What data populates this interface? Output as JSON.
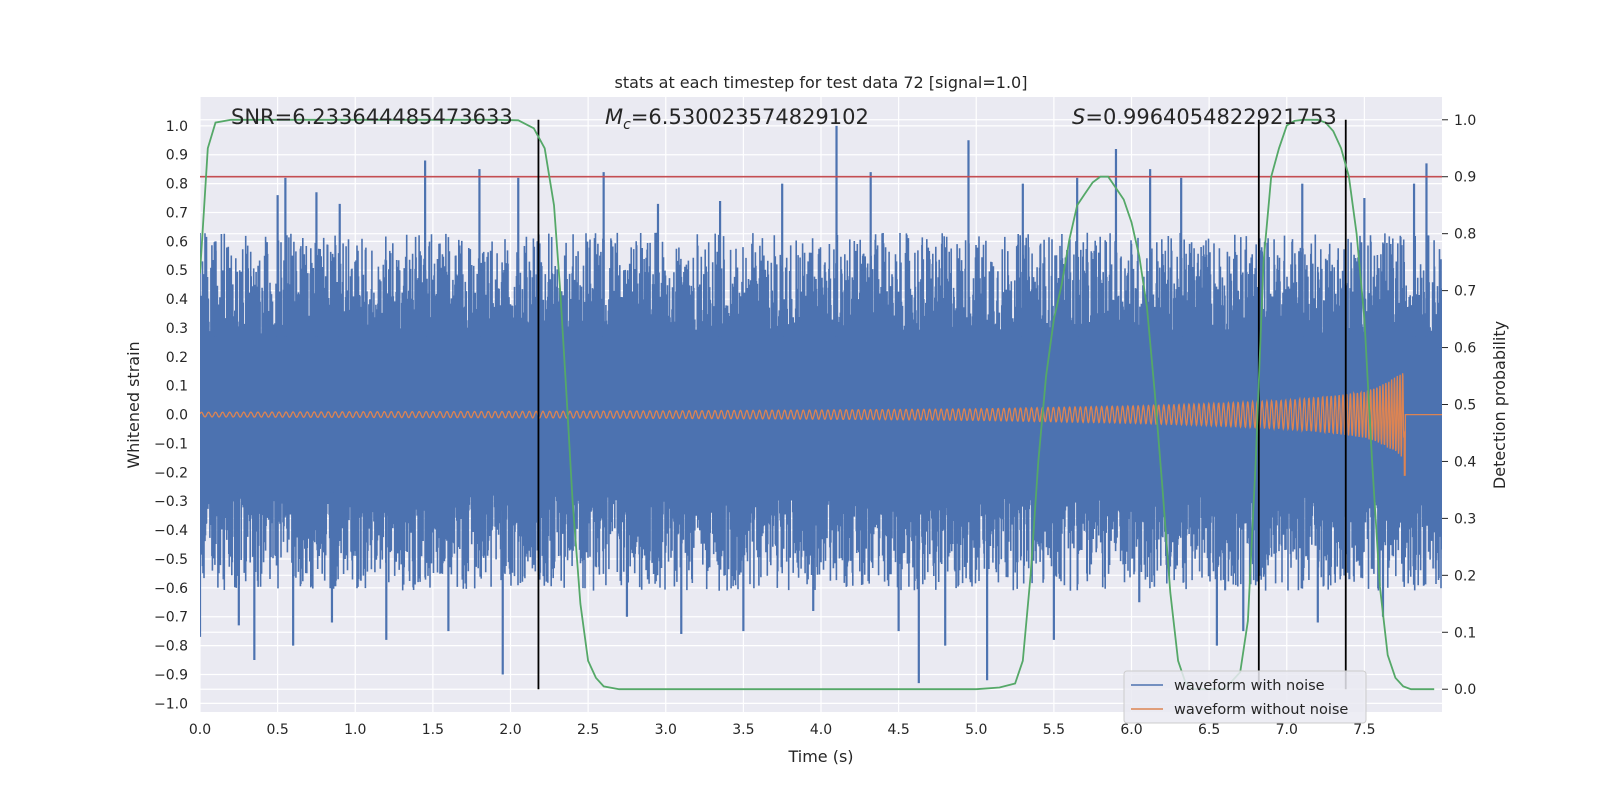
{
  "chart_data": {
    "type": "line",
    "title": "stats at each timestep for test data 72 [signal=1.0]",
    "xlabel": "Time (s)",
    "ylabel": "Whitened strain",
    "y2label": "Detection probability",
    "xlim": [
      0.0,
      8.0
    ],
    "ylim": [
      -1.03,
      1.1
    ],
    "y2lim": [
      -0.04,
      1.04
    ],
    "x_ticks": [
      "0.0",
      "0.5",
      "1.0",
      "1.5",
      "2.0",
      "2.5",
      "3.0",
      "3.5",
      "4.0",
      "4.5",
      "5.0",
      "5.5",
      "6.0",
      "6.5",
      "7.0",
      "7.5"
    ],
    "y_ticks": [
      "1.0",
      "0.9",
      "0.8",
      "0.7",
      "0.6",
      "0.5",
      "0.4",
      "0.3",
      "0.2",
      "0.1",
      "0.0",
      "−0.1",
      "−0.2",
      "−0.3",
      "−0.4",
      "−0.5",
      "−0.6",
      "−0.7",
      "−0.8",
      "−0.9",
      "−1.0"
    ],
    "y2_ticks": [
      "1.0",
      "0.9",
      "0.8",
      "0.7",
      "0.6",
      "0.5",
      "0.4",
      "0.3",
      "0.2",
      "0.1",
      "0.0"
    ],
    "annotations": {
      "snr": "SNR=6.233644485473633",
      "mc": "=6.530023574829102",
      "mc_symbol": "M",
      "mc_sub": "c",
      "s": "=0.9964054822921753",
      "s_symbol": "S"
    },
    "legend": {
      "placement": "lower-right",
      "entries": [
        {
          "label": "waveform with noise",
          "color": "#4c72b0"
        },
        {
          "label": "waveform without noise",
          "color": "#dd8452"
        }
      ]
    },
    "threshold": {
      "y2": 0.9,
      "color": "#c44e52"
    },
    "vertical_markers": [
      2.18,
      6.82,
      7.38
    ],
    "detection_probability": {
      "color": "#55a868",
      "x": [
        0.0,
        0.05,
        0.1,
        0.2,
        0.4,
        1.0,
        1.5,
        1.9,
        2.05,
        2.15,
        2.22,
        2.28,
        2.32,
        2.36,
        2.4,
        2.45,
        2.5,
        2.55,
        2.6,
        2.7,
        2.8,
        3.0,
        4.0,
        5.0,
        5.15,
        5.25,
        5.3,
        5.35,
        5.4,
        5.45,
        5.5,
        5.55,
        5.6,
        5.65,
        5.7,
        5.75,
        5.8,
        5.85,
        5.9,
        5.95,
        6.0,
        6.05,
        6.1,
        6.15,
        6.2,
        6.25,
        6.3,
        6.35,
        6.4,
        6.45,
        6.5,
        6.6,
        6.7,
        6.75,
        6.8,
        6.85,
        6.9,
        6.95,
        7.0,
        7.05,
        7.1,
        7.15,
        7.2,
        7.25,
        7.3,
        7.35,
        7.4,
        7.45,
        7.5,
        7.55,
        7.6,
        7.65,
        7.7,
        7.75,
        7.8,
        7.9,
        7.95
      ],
      "y": [
        0.73,
        0.95,
        0.995,
        1.0,
        1.0,
        1.0,
        1.0,
        1.0,
        0.999,
        0.985,
        0.95,
        0.85,
        0.7,
        0.52,
        0.33,
        0.15,
        0.05,
        0.02,
        0.005,
        0.0,
        0.0,
        0.0,
        0.0,
        0.0,
        0.003,
        0.01,
        0.05,
        0.2,
        0.4,
        0.55,
        0.65,
        0.71,
        0.79,
        0.85,
        0.87,
        0.89,
        0.9,
        0.9,
        0.88,
        0.86,
        0.82,
        0.76,
        0.67,
        0.52,
        0.35,
        0.17,
        0.05,
        0.01,
        0.0,
        0.0,
        0.0,
        0.0,
        0.03,
        0.12,
        0.4,
        0.75,
        0.9,
        0.95,
        0.99,
        0.998,
        1.0,
        1.0,
        1.0,
        0.995,
        0.98,
        0.95,
        0.9,
        0.8,
        0.65,
        0.4,
        0.18,
        0.06,
        0.02,
        0.005,
        0.0,
        0.0,
        0.0
      ]
    },
    "noise_spikes": {
      "x": [
        0.0,
        0.1,
        0.25,
        0.35,
        0.5,
        0.55,
        0.6,
        0.75,
        0.85,
        0.9,
        1.2,
        1.45,
        1.6,
        1.8,
        1.95,
        2.05,
        2.6,
        2.75,
        2.95,
        3.1,
        3.35,
        3.5,
        3.75,
        3.95,
        4.1,
        4.32,
        4.5,
        4.63,
        4.8,
        4.95,
        5.07,
        5.3,
        5.5,
        5.65,
        5.9,
        6.05,
        6.12,
        6.32,
        6.55,
        6.72,
        7.1,
        7.2,
        7.5,
        7.62,
        7.82,
        7.9
      ],
      "y": [
        -0.77,
        0.6,
        -0.73,
        -0.85,
        0.76,
        0.82,
        -0.8,
        0.77,
        -0.72,
        0.73,
        -0.78,
        0.88,
        -0.75,
        0.85,
        -0.9,
        0.82,
        0.84,
        -0.7,
        0.73,
        -0.76,
        0.74,
        -0.75,
        0.8,
        -0.68,
        1.0,
        0.84,
        -0.75,
        -0.93,
        -0.8,
        0.95,
        -0.92,
        0.8,
        -0.78,
        0.82,
        0.92,
        -0.65,
        0.85,
        0.82,
        -0.8,
        -0.75,
        0.8,
        -0.72,
        0.75,
        -0.7,
        0.8,
        0.87
      ]
    },
    "clean_waveform": {
      "color": "#dd8452",
      "description_points": "chirp amplitude envelope",
      "envelope_x": [
        0.0,
        1.0,
        2.0,
        3.0,
        4.0,
        5.0,
        6.0,
        6.5,
        7.0,
        7.3,
        7.5,
        7.6,
        7.7,
        7.75,
        7.76,
        7.8,
        8.0
      ],
      "envelope_y": [
        0.008,
        0.01,
        0.011,
        0.013,
        0.016,
        0.02,
        0.03,
        0.038,
        0.05,
        0.065,
        0.08,
        0.1,
        0.13,
        0.15,
        0.0,
        0.0,
        0.0
      ],
      "peak_min": -0.21,
      "peak_x": 7.76
    }
  }
}
